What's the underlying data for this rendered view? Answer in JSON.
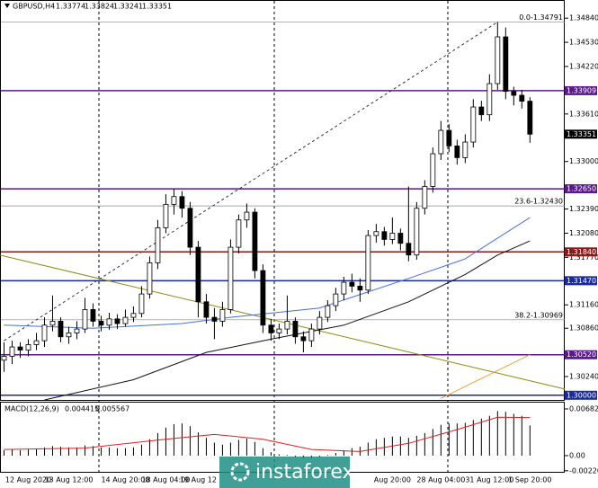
{
  "chart_data": {
    "type": "candlestick",
    "symbol": "GBPUSD,H4",
    "ylim": [
      1.2994,
      1.3505
    ],
    "yticks": [
      {
        "value": 1.3484,
        "label": "1.34840"
      },
      {
        "value": 1.3453,
        "label": "1.34530"
      },
      {
        "value": 1.3422,
        "label": "1.34220"
      },
      {
        "value": 1.3361,
        "label": "1.33610"
      },
      {
        "value": 1.33,
        "label": "1.33000"
      },
      {
        "value": 1.3239,
        "label": "1.32390"
      },
      {
        "value": 1.3208,
        "label": "1.32080"
      },
      {
        "value": 1.3177,
        "label": "1.31770"
      },
      {
        "value": 1.3116,
        "label": "1.31160"
      },
      {
        "value": 1.3086,
        "label": "1.30860"
      },
      {
        "value": 1.3024,
        "label": "1.30240"
      }
    ],
    "xlim": [
      -0.5,
      69.3
    ],
    "categories": [
      null,
      null,
      null,
      "12 Aug 2020",
      null,
      null,
      null,
      null,
      "13 Aug 12:00",
      null,
      null,
      null,
      null,
      null,
      null,
      "14 Aug 20:00",
      null,
      null,
      null,
      null,
      "18 Aug 04:00",
      null,
      null,
      null,
      "19 Aug 12",
      null,
      null,
      null,
      null,
      null,
      null,
      null,
      null,
      null,
      null,
      null,
      null,
      null,
      null,
      null,
      null,
      null,
      null,
      null,
      null,
      null,
      null,
      null,
      "Aug 20:00",
      null,
      null,
      null,
      null,
      null,
      "28 Aug 04:00",
      null,
      null,
      null,
      null,
      null,
      "31 Aug 12:00",
      null,
      null,
      null,
      null,
      "1 Sep 20:00"
    ],
    "ohlc": [
      [
        1.3045,
        1.3068,
        1.303,
        1.305
      ],
      [
        1.305,
        1.307,
        1.304,
        1.3062
      ],
      [
        1.3062,
        1.3068,
        1.3048,
        1.3058
      ],
      [
        1.3058,
        1.3072,
        1.305,
        1.3065
      ],
      [
        1.3065,
        1.308,
        1.3058,
        1.307
      ],
      [
        1.307,
        1.31,
        1.3062,
        1.309
      ],
      [
        1.309,
        1.3128,
        1.3082,
        1.3095
      ],
      [
        1.3095,
        1.31,
        1.3068,
        1.3075
      ],
      [
        1.3075,
        1.3088,
        1.3066,
        1.308
      ],
      [
        1.308,
        1.3095,
        1.3072,
        1.3085
      ],
      [
        1.3085,
        1.3125,
        1.308,
        1.311
      ],
      [
        1.311,
        1.3118,
        1.3088,
        1.3095
      ],
      [
        1.3095,
        1.3102,
        1.3082,
        1.309
      ],
      [
        1.309,
        1.3106,
        1.3084,
        1.3098
      ],
      [
        1.3098,
        1.3104,
        1.3085,
        1.3092
      ],
      [
        1.3092,
        1.311,
        1.3088,
        1.31
      ],
      [
        1.31,
        1.3114,
        1.3094,
        1.3105
      ],
      [
        1.3105,
        1.314,
        1.31,
        1.313
      ],
      [
        1.313,
        1.3178,
        1.3124,
        1.317
      ],
      [
        1.317,
        1.3225,
        1.3162,
        1.3215
      ],
      [
        1.3215,
        1.3258,
        1.3208,
        1.3245
      ],
      [
        1.3245,
        1.3265,
        1.3232,
        1.3255
      ],
      [
        1.3255,
        1.3262,
        1.3228,
        1.324
      ],
      [
        1.324,
        1.3248,
        1.318,
        1.319
      ],
      [
        1.319,
        1.3198,
        1.31,
        1.312
      ],
      [
        1.312,
        1.313,
        1.3092,
        1.31
      ],
      [
        1.31,
        1.3112,
        1.3072,
        1.3095
      ],
      [
        1.3095,
        1.312,
        1.3088,
        1.311
      ],
      [
        1.311,
        1.32,
        1.3105,
        1.319
      ],
      [
        1.319,
        1.3232,
        1.3182,
        1.3225
      ],
      [
        1.3225,
        1.3246,
        1.3215,
        1.3235
      ],
      [
        1.3235,
        1.324,
        1.315,
        1.316
      ],
      [
        1.316,
        1.3168,
        1.308,
        1.309
      ],
      [
        1.309,
        1.3098,
        1.307,
        1.308
      ],
      [
        1.308,
        1.3092,
        1.3072,
        1.3085
      ],
      [
        1.3085,
        1.3128,
        1.3078,
        1.3095
      ],
      [
        1.3095,
        1.31,
        1.3066,
        1.3075
      ],
      [
        1.3075,
        1.3082,
        1.3055,
        1.307
      ],
      [
        1.307,
        1.3092,
        1.3062,
        1.3085
      ],
      [
        1.3085,
        1.3108,
        1.3078,
        1.31
      ],
      [
        1.31,
        1.3122,
        1.3094,
        1.3115
      ],
      [
        1.3115,
        1.3138,
        1.3108,
        1.313
      ],
      [
        1.313,
        1.3152,
        1.3122,
        1.3145
      ],
      [
        1.3145,
        1.3156,
        1.3132,
        1.314
      ],
      [
        1.314,
        1.315,
        1.312,
        1.3135
      ],
      [
        1.3135,
        1.3212,
        1.313,
        1.3205
      ],
      [
        1.3205,
        1.322,
        1.3196,
        1.321
      ],
      [
        1.321,
        1.3216,
        1.3192,
        1.32
      ],
      [
        1.32,
        1.3228,
        1.3194,
        1.3208
      ],
      [
        1.3208,
        1.3214,
        1.3186,
        1.3195
      ],
      [
        1.3195,
        1.3268,
        1.3172,
        1.318
      ],
      [
        1.318,
        1.3248,
        1.3174,
        1.324
      ],
      [
        1.324,
        1.3276,
        1.3232,
        1.3268
      ],
      [
        1.3268,
        1.3318,
        1.326,
        1.331
      ],
      [
        1.331,
        1.3352,
        1.3302,
        1.334
      ],
      [
        1.334,
        1.3348,
        1.3312,
        1.332
      ],
      [
        1.332,
        1.3328,
        1.3296,
        1.3305
      ],
      [
        1.3305,
        1.3335,
        1.3298,
        1.3325
      ],
      [
        1.3325,
        1.338,
        1.3318,
        1.337
      ],
      [
        1.337,
        1.3378,
        1.3352,
        1.336
      ],
      [
        1.336,
        1.3412,
        1.3352,
        1.34
      ],
      [
        1.34,
        1.34791,
        1.3392,
        1.346
      ],
      [
        1.346,
        1.3472,
        1.338,
        1.339
      ],
      [
        1.339,
        1.3396,
        1.3372,
        1.3385
      ],
      [
        1.3385,
        1.3392,
        1.3368,
        1.33774
      ],
      [
        1.33774,
        1.33824,
        1.33241,
        1.33351
      ]
    ],
    "lines": [
      {
        "color": "#4a6fe0",
        "x": [
          0,
          11,
          22,
          28,
          39,
          50,
          57,
          60,
          65
        ],
        "values": [
          1.309,
          1.3086,
          1.3092,
          1.31,
          1.3112,
          1.315,
          1.3175,
          1.3195,
          1.3228
        ]
      },
      {
        "color": "#111111",
        "x": [
          5,
          16,
          25,
          33,
          42,
          50,
          57,
          61,
          65
        ],
        "values": [
          1.2994,
          1.302,
          1.3055,
          1.3072,
          1.309,
          1.312,
          1.3155,
          1.318,
          1.3198
        ]
      },
      {
        "color": "#f0a040",
        "x": [
          54,
          65
        ],
        "values": [
          1.2996,
          1.3052
        ]
      }
    ],
    "trendlines": [
      {
        "color": "#8b8b10",
        "dash": false,
        "x": [
          -0.5,
          69.3
        ],
        "values": [
          1.318,
          1.3008
        ]
      },
      {
        "color": "#333333",
        "dash": true,
        "x": [
          0,
          61
        ],
        "values": [
          1.307,
          1.34791
        ]
      }
    ],
    "levels": [
      {
        "value": 1.33909,
        "label": "1.33909",
        "color": "#5a1a8a"
      },
      {
        "value": 1.3265,
        "label": "1.32650",
        "color": "#5a1a8a"
      },
      {
        "value": 1.3184,
        "label": "1.31840",
        "color": "#8b1a1a"
      },
      {
        "value": 1.3147,
        "label": "1.31470",
        "color": "#1a2a9a"
      },
      {
        "value": 1.3052,
        "label": "1.30520",
        "color": "#5a1a8a"
      },
      {
        "value": 1.3,
        "label": "1.30000",
        "color": "#1a2a9a"
      }
    ],
    "fibo": [
      {
        "value": 1.34791,
        "label": "0.0-1.34791"
      },
      {
        "value": 1.3243,
        "label": "23.6-1.32430"
      },
      {
        "value": 1.30969,
        "label": "38.2-1.30969"
      }
    ],
    "macd": {
      "title": "MACD(12,26,9)",
      "ylim": [
        -0.00236,
        0.00787
      ],
      "yticks": [
        {
          "value": 0.006823,
          "label": "0.006823"
        },
        {
          "value": 0,
          "label": "0.00"
        },
        {
          "value": -0.002208,
          "label": "-0.002208"
        }
      ],
      "histogram": [
        0.0008,
        0.0009,
        0.0008,
        0.0009,
        0.001,
        0.0012,
        0.0014,
        0.0013,
        0.0012,
        0.0012,
        0.0015,
        0.0014,
        0.0012,
        0.0012,
        0.0011,
        0.0011,
        0.0012,
        0.0016,
        0.0024,
        0.0033,
        0.0041,
        0.0046,
        0.0047,
        0.0043,
        0.0034,
        0.0026,
        0.0019,
        0.0016,
        0.0019,
        0.0023,
        0.0025,
        0.002,
        0.0011,
        0.0005,
        0.0002,
        0.0001,
        -0.0002,
        -0.0004,
        -0.0004,
        -0.0002,
        0.0001,
        0.0004,
        0.0008,
        0.0011,
        0.0013,
        0.0019,
        0.0024,
        0.0026,
        0.0028,
        0.0028,
        0.0026,
        0.0029,
        0.0033,
        0.0039,
        0.0045,
        0.0047,
        0.0047,
        0.0048,
        0.0052,
        0.0054,
        0.0058,
        0.0065,
        0.0064,
        0.0061,
        0.0058,
        0.004415
      ],
      "signal": {
        "color": "#e02020",
        "x": [
          0,
          10,
          20,
          26,
          32,
          38,
          44,
          50,
          56,
          61,
          65
        ],
        "values": [
          0.0009,
          0.0011,
          0.0024,
          0.0031,
          0.0024,
          0.0009,
          0.0006,
          0.0018,
          0.0038,
          0.0056,
          0.005567
        ]
      }
    },
    "watermark": "instaforex"
  }
}
